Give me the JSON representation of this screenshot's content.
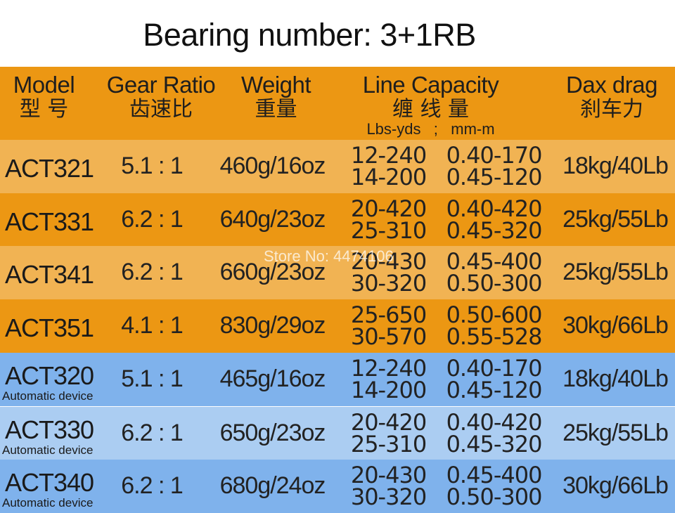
{
  "title": "Bearing number: 3+1RB",
  "header": {
    "model": {
      "en": "Model",
      "zh": "型 号"
    },
    "gear_ratio": {
      "en": "Gear Ratio",
      "zh": "齿速比"
    },
    "weight": {
      "en": "Weight",
      "zh": "重量"
    },
    "line_capacity": {
      "en": "Line Capacity",
      "zh": "缠 线 量",
      "sub": "Lbs-yds   ;   mm-m"
    },
    "drag": {
      "en": "Dax drag",
      "zh": "刹车力"
    }
  },
  "rows": [
    {
      "model": "ACT321",
      "ratio": "5.1 : 1",
      "weight": "460g/16oz",
      "lbs1": "12-240",
      "lbs2": "14-200",
      "mm1": "0.40-170",
      "mm2": "0.45-120",
      "drag": "18kg/40Lb"
    },
    {
      "model": "ACT331",
      "ratio": "6.2 : 1",
      "weight": "640g/23oz",
      "lbs1": "20-420",
      "lbs2": "25-310",
      "mm1": "0.40-420",
      "mm2": "0.45-320",
      "drag": "25kg/55Lb"
    },
    {
      "model": "ACT341",
      "ratio": "6.2 : 1",
      "weight": "660g/23oz",
      "lbs1": "20-430",
      "lbs2": "30-320",
      "mm1": "0.45-400",
      "mm2": "0.50-300",
      "drag": "25kg/55Lb"
    },
    {
      "model": "ACT351",
      "ratio": "4.1 : 1",
      "weight": "830g/29oz",
      "lbs1": "25-650",
      "lbs2": "30-570",
      "mm1": "0.50-600",
      "mm2": "0.55-528",
      "drag": "30kg/66Lb"
    },
    {
      "model": "ACT320",
      "sub": "Automatic device",
      "ratio": "5.1 : 1",
      "weight": "465g/16oz",
      "lbs1": "12-240",
      "lbs2": "14-200",
      "mm1": "0.40-170",
      "mm2": "0.45-120",
      "drag": "18kg/40Lb"
    },
    {
      "model": "ACT330",
      "sub": "Automatic device",
      "ratio": "6.2 : 1",
      "weight": "650g/23oz",
      "lbs1": "20-420",
      "lbs2": "25-310",
      "mm1": "0.40-420",
      "mm2": "0.45-320",
      "drag": "25kg/55Lb"
    },
    {
      "model": "ACT340",
      "sub": "Automatic device",
      "ratio": "6.2 : 1",
      "weight": "680g/24oz",
      "lbs1": "20-430",
      "lbs2": "30-320",
      "mm1": "0.45-400",
      "mm2": "0.50-300",
      "drag": "30kg/66Lb"
    }
  ],
  "watermark": "Store No: 4474106"
}
